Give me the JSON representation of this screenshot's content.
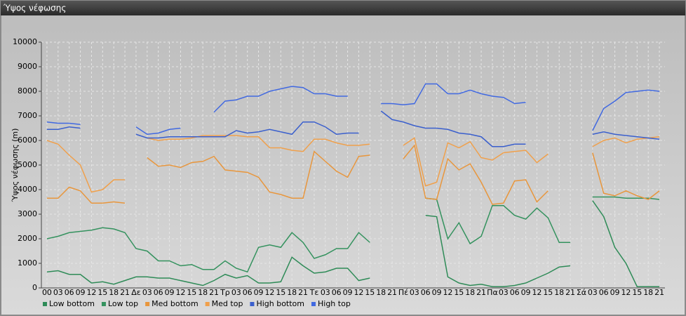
{
  "chart_data": {
    "type": "line",
    "title": "Ύψος νέφωσης",
    "ylabel": "Ύψος νέφωσης (m)",
    "categories": [
      "00",
      "03",
      "06",
      "09",
      "12",
      "15",
      "18",
      "21",
      "Δε",
      "03",
      "06",
      "09",
      "12",
      "15",
      "18",
      "21",
      "Τρ",
      "03",
      "06",
      "09",
      "12",
      "15",
      "18",
      "21",
      "Τε",
      "03",
      "06",
      "09",
      "12",
      "15",
      "18",
      "21",
      "Πέ",
      "03",
      "06",
      "09",
      "12",
      "15",
      "18",
      "21",
      "Πα",
      "03",
      "06",
      "09",
      "12",
      "15",
      "18",
      "21",
      "Σά",
      "03",
      "06",
      "09",
      "12",
      "15",
      "18",
      "21"
    ],
    "series": [
      {
        "name": "Low bottom",
        "color": "#2e8b57",
        "values": [
          650,
          700,
          550,
          550,
          200,
          250,
          150,
          300,
          450,
          450,
          400,
          400,
          300,
          200,
          100,
          300,
          550,
          400,
          500,
          200,
          200,
          250,
          1250,
          900,
          600,
          650,
          800,
          800,
          300,
          400,
          null,
          null,
          null,
          null,
          2950,
          2900,
          450,
          200,
          100,
          150,
          50,
          50,
          100,
          200,
          400,
          600,
          850,
          900,
          null,
          3550,
          2900,
          1650,
          1000,
          50,
          50,
          50
        ]
      },
      {
        "name": "Low top",
        "color": "#34925e",
        "values": [
          2000,
          2100,
          2250,
          2300,
          2350,
          2450,
          2400,
          2250,
          1600,
          1500,
          1100,
          1100,
          900,
          950,
          750,
          750,
          1100,
          800,
          650,
          1650,
          1750,
          1650,
          2250,
          1850,
          1200,
          1350,
          1600,
          1600,
          2250,
          1850,
          null,
          null,
          null,
          null,
          3650,
          3600,
          2000,
          2650,
          1800,
          2100,
          3350,
          3350,
          2950,
          2800,
          3250,
          2850,
          1850,
          1850,
          null,
          3700,
          3700,
          3700,
          3650,
          3650,
          3650,
          3600
        ]
      },
      {
        "name": "Med bottom",
        "color": "#e8963c",
        "values": [
          3650,
          3650,
          4100,
          3950,
          3450,
          3450,
          3500,
          3450,
          null,
          5300,
          4950,
          5000,
          4900,
          5100,
          5150,
          5350,
          4800,
          4750,
          4700,
          4500,
          3900,
          3800,
          3650,
          3650,
          5550,
          5150,
          4750,
          4500,
          5350,
          5400,
          null,
          null,
          5250,
          5800,
          3650,
          3600,
          5250,
          4800,
          5050,
          4300,
          3400,
          3450,
          4350,
          4400,
          3500,
          3950,
          null,
          null,
          null,
          5500,
          3850,
          3750,
          3950,
          3750,
          3600,
          3950
        ]
      },
      {
        "name": "Med top",
        "color": "#f0a04b",
        "values": [
          6000,
          5850,
          5400,
          5000,
          3900,
          4000,
          4400,
          4400,
          null,
          6100,
          6000,
          6050,
          6050,
          6100,
          6200,
          6200,
          6200,
          6200,
          6150,
          6150,
          5700,
          5700,
          5600,
          5550,
          6050,
          6050,
          5900,
          5800,
          5800,
          5850,
          null,
          null,
          5800,
          6100,
          4150,
          4300,
          5900,
          5700,
          5950,
          5300,
          5200,
          5500,
          5550,
          5600,
          5100,
          5450,
          null,
          null,
          null,
          5750,
          6000,
          6100,
          5900,
          6050,
          6100,
          6150
        ]
      },
      {
        "name": "High bottom",
        "color": "#3a5fcd",
        "values": [
          6450,
          6450,
          6550,
          6500,
          null,
          null,
          null,
          null,
          6250,
          6100,
          6100,
          6150,
          6150,
          6150,
          6150,
          6150,
          6150,
          6400,
          6300,
          6350,
          6450,
          6350,
          6250,
          6750,
          6750,
          6550,
          6250,
          6300,
          6300,
          null,
          7200,
          6850,
          6750,
          6600,
          6500,
          6500,
          6450,
          6300,
          6250,
          6150,
          5750,
          5750,
          5850,
          5850,
          null,
          null,
          null,
          null,
          null,
          6250,
          6350,
          6250,
          6200,
          6150,
          6100,
          6050
        ]
      },
      {
        "name": "High top",
        "color": "#4169e1",
        "values": [
          6750,
          6700,
          6700,
          6650,
          null,
          null,
          null,
          null,
          6550,
          6250,
          6300,
          6450,
          6500,
          null,
          null,
          7150,
          7600,
          7650,
          7800,
          7800,
          8000,
          8100,
          8200,
          8150,
          7900,
          7900,
          7800,
          7800,
          null,
          null,
          7500,
          7500,
          7450,
          7500,
          8300,
          8300,
          7900,
          7900,
          8050,
          7900,
          7800,
          7750,
          7500,
          7550,
          null,
          null,
          null,
          null,
          null,
          6400,
          7300,
          7600,
          7950,
          8000,
          8050,
          8000
        ]
      }
    ],
    "ylim": [
      0,
      10000
    ],
    "yticks": [
      0,
      1000,
      2000,
      3000,
      4000,
      5000,
      6000,
      7000,
      8000,
      9000,
      10000
    ],
    "grid": true,
    "legend": "bottom"
  }
}
